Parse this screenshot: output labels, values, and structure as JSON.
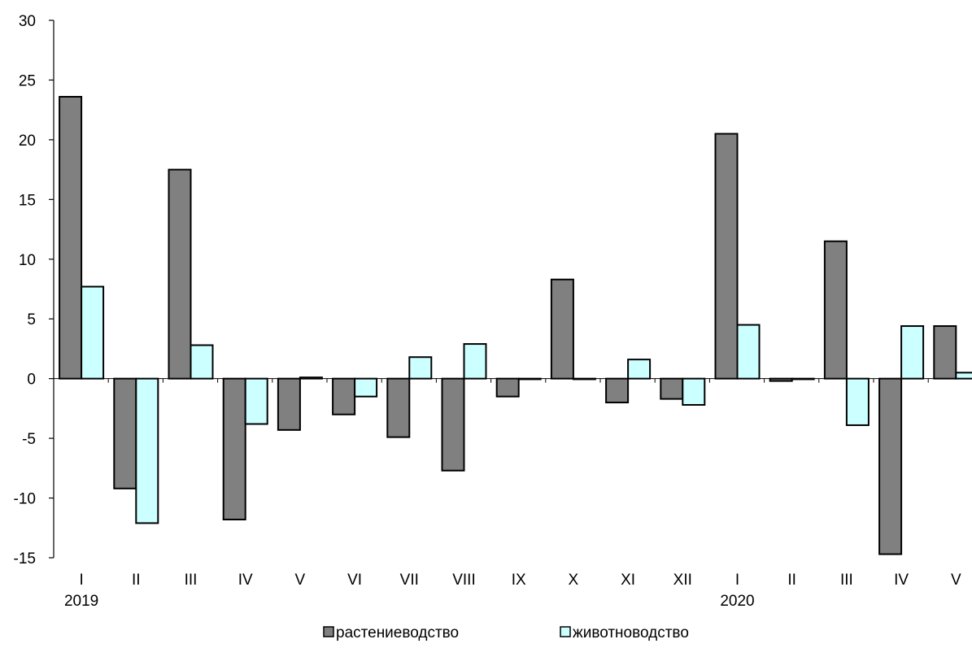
{
  "chart_data": {
    "type": "bar",
    "categories": [
      "I",
      "II",
      "III",
      "IV",
      "V",
      "VI",
      "VII",
      "VIII",
      "IX",
      "X",
      "XI",
      "XII",
      "I",
      "II",
      "III",
      "IV",
      "V"
    ],
    "year_labels": [
      {
        "category_index": 0,
        "label": "2019"
      },
      {
        "category_index": 12,
        "label": "2020"
      }
    ],
    "series": [
      {
        "name": "растениеводство",
        "color": "#808080",
        "values": [
          23.6,
          -9.2,
          17.5,
          -11.8,
          -4.3,
          -3.0,
          -4.9,
          -7.7,
          -1.5,
          8.3,
          -2.0,
          -1.7,
          20.5,
          -0.2,
          11.5,
          -14.7,
          4.4
        ]
      },
      {
        "name": "животноводство",
        "color": "#ccffff",
        "values": [
          7.7,
          -12.1,
          2.8,
          -3.8,
          0.1,
          -1.5,
          1.8,
          2.9,
          0.0,
          0.0,
          1.6,
          -2.2,
          4.5,
          0.0,
          -3.9,
          4.4,
          0.5
        ]
      }
    ],
    "yticks": [
      "30",
      "25",
      "20",
      "15",
      "10",
      "5",
      "0",
      "-5",
      "-10",
      "-15"
    ],
    "ylim": [
      -15,
      30
    ],
    "title": "",
    "xlabel": "",
    "ylabel": "",
    "grid": false,
    "legend_position": "bottom"
  }
}
